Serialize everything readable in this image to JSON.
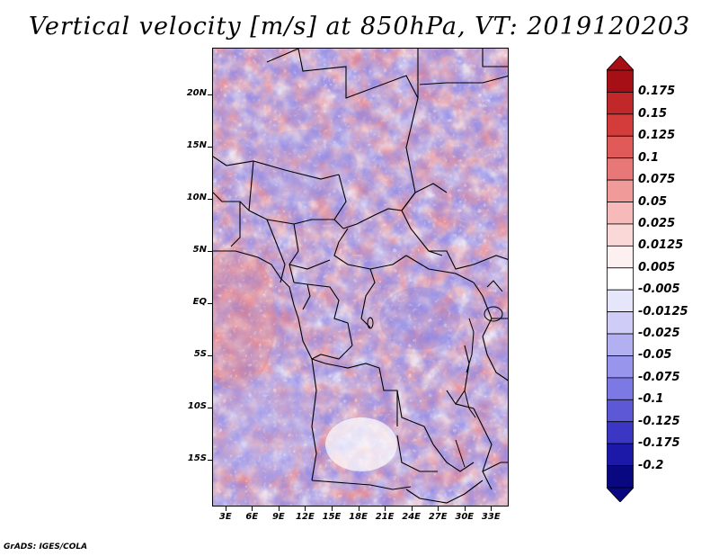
{
  "title": "Vertical velocity [m/s] at 850hPa, VT: 2019120203",
  "footer": "GrADS: IGES/COLA",
  "map": {
    "latitude_labels": [
      "20N",
      "15N",
      "10N",
      "5N",
      "EQ",
      "5S",
      "10S",
      "15S"
    ],
    "latitude_values": [
      20,
      15,
      10,
      5,
      0,
      -5,
      -10,
      -15
    ],
    "longitude_labels": [
      "3E",
      "6E",
      "9E",
      "12E",
      "15E",
      "18E",
      "21E",
      "24E",
      "27E",
      "30E",
      "33E"
    ],
    "longitude_values": [
      3,
      6,
      9,
      12,
      15,
      18,
      21,
      24,
      27,
      30,
      33
    ],
    "lon_range": [
      1.5,
      35
    ],
    "lat_range": [
      -19.5,
      24.5
    ]
  },
  "colorbar": {
    "labels": [
      "0.175",
      "0.15",
      "0.125",
      "0.1",
      "0.075",
      "0.05",
      "0.025",
      "0.0125",
      "0.005",
      "-0.005",
      "-0.0125",
      "-0.025",
      "-0.05",
      "-0.075",
      "-0.1",
      "-0.125",
      "-0.175",
      "-0.2"
    ],
    "colors": [
      "#a50f15",
      "#c0282a",
      "#d43c3c",
      "#e05a5a",
      "#e87878",
      "#f09a9a",
      "#f6baba",
      "#fad8d8",
      "#fdf0f0",
      "#ffffff",
      "#e6e6fa",
      "#cfcdf7",
      "#b3b0f2",
      "#9895ec",
      "#7c78e4",
      "#5d59d6",
      "#3b37c4",
      "#1c18a8",
      "#0a0880"
    ],
    "top_color": "#a50f15",
    "bottom_color": "#0a0880"
  }
}
